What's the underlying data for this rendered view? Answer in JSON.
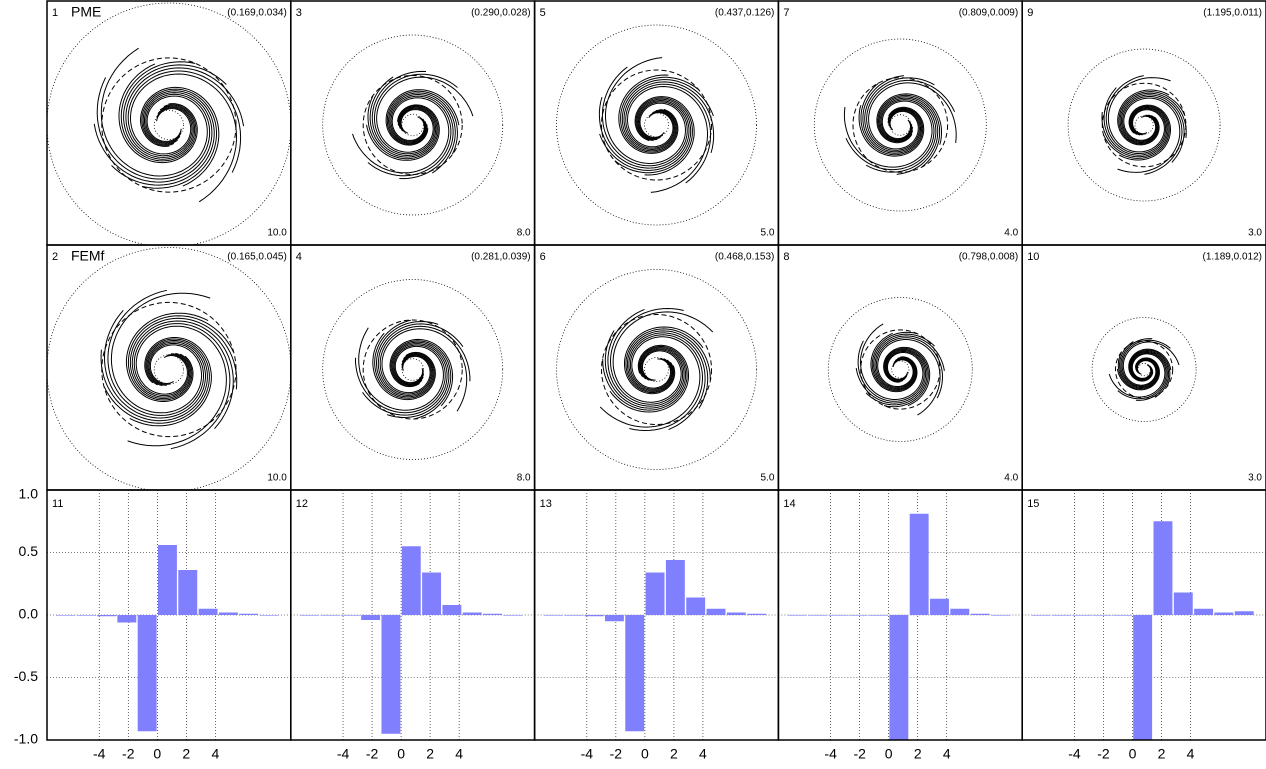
{
  "chart_data": [
    {
      "type": "contour",
      "label": "1",
      "name": "PME",
      "coords": "(0.169,0.034)",
      "scale": "10.0"
    },
    {
      "type": "contour",
      "label": "2",
      "name": "FEMf",
      "coords": "(0.165,0.045)",
      "scale": "10.0"
    },
    {
      "type": "contour",
      "label": "3",
      "coords": "(0.290,0.028)",
      "scale": "8.0"
    },
    {
      "type": "contour",
      "label": "4",
      "coords": "(0.281,0.039)",
      "scale": "8.0"
    },
    {
      "type": "contour",
      "label": "5",
      "coords": "(0.437,0.126)",
      "scale": "5.0"
    },
    {
      "type": "contour",
      "label": "6",
      "coords": "(0.468,0.153)",
      "scale": "5.0"
    },
    {
      "type": "contour",
      "label": "7",
      "coords": "(0.809,0.009)",
      "scale": "4.0"
    },
    {
      "type": "contour",
      "label": "8",
      "coords": "(0.798,0.008)",
      "scale": "4.0"
    },
    {
      "type": "contour",
      "label": "9",
      "coords": "(1.195,0.011)",
      "scale": "3.0"
    },
    {
      "type": "contour",
      "label": "10",
      "coords": "(1.189,0.012)",
      "scale": "3.0"
    },
    {
      "type": "bar",
      "label": "11",
      "color": "#8080ff",
      "bar_width": 1.4,
      "grid": true,
      "x": [
        -6.3,
        -4.9,
        -3.5,
        -2.1,
        -0.7,
        0.7,
        2.1,
        3.5,
        4.9,
        6.3,
        7.7
      ],
      "values": [
        0,
        -0.005,
        -0.01,
        -0.06,
        -0.93,
        0.56,
        0.36,
        0.05,
        0.02,
        0.01,
        0
      ],
      "xlim": [
        -7.6,
        9.2
      ],
      "ylim": [
        -1,
        1
      ],
      "xticks": [
        -4,
        -2,
        0,
        2,
        4
      ],
      "yticks": [
        {
          "value": -1,
          "label": "-1.0"
        },
        {
          "value": -0.5,
          "label": "-0.5"
        },
        {
          "value": 0,
          "label": "0.0"
        },
        {
          "value": 0.5,
          "label": "0.5"
        },
        {
          "value": 1,
          "label": "1.0"
        }
      ]
    },
    {
      "type": "bar",
      "label": "12",
      "color": "#8080ff",
      "bar_width": 1.4,
      "grid": true,
      "x": [
        -6.3,
        -4.9,
        -3.5,
        -2.1,
        -0.7,
        0.7,
        2.1,
        3.5,
        4.9,
        6.3,
        7.7
      ],
      "values": [
        0,
        0,
        -0.005,
        -0.04,
        -0.95,
        0.55,
        0.34,
        0.08,
        0.02,
        0.01,
        0
      ],
      "xlim": [
        -7.6,
        9.2
      ],
      "ylim": [
        -1,
        1
      ],
      "xticks": [
        -4,
        -2,
        0,
        2,
        4
      ]
    },
    {
      "type": "bar",
      "label": "13",
      "color": "#8080ff",
      "bar_width": 1.4,
      "grid": true,
      "x": [
        -6.3,
        -4.9,
        -3.5,
        -2.1,
        -0.7,
        0.7,
        2.1,
        3.5,
        4.9,
        6.3,
        7.7
      ],
      "values": [
        0,
        -0.005,
        -0.01,
        -0.05,
        -0.93,
        0.34,
        0.44,
        0.14,
        0.05,
        0.02,
        0.01
      ],
      "xlim": [
        -7.6,
        9.2
      ],
      "ylim": [
        -1,
        1
      ],
      "xticks": [
        -4,
        -2,
        0,
        2,
        4
      ]
    },
    {
      "type": "bar",
      "label": "14",
      "color": "#8080ff",
      "bar_width": 1.4,
      "grid": true,
      "x": [
        -6.3,
        -4.9,
        -3.5,
        -2.1,
        -0.7,
        0.7,
        2.1,
        3.5,
        4.9,
        6.3,
        7.7
      ],
      "values": [
        0,
        0,
        0,
        0,
        -0.005,
        -1.0,
        0.81,
        0.13,
        0.05,
        0.01,
        0
      ],
      "xlim": [
        -7.6,
        9.2
      ],
      "ylim": [
        -1,
        1
      ],
      "xticks": [
        -4,
        -2,
        0,
        2,
        4
      ]
    },
    {
      "type": "bar",
      "label": "15",
      "color": "#8080ff",
      "bar_width": 1.4,
      "grid": true,
      "x": [
        -6.3,
        -4.9,
        -3.5,
        -2.1,
        -0.7,
        0.7,
        2.1,
        3.5,
        4.9,
        6.3,
        7.7
      ],
      "values": [
        0,
        0,
        0,
        0,
        -0.005,
        -1.0,
        0.75,
        0.18,
        0.05,
        0.02,
        0.03
      ],
      "xlim": [
        -7.6,
        9.2
      ],
      "ylim": [
        -1,
        1
      ],
      "xticks": [
        -4,
        -2,
        0,
        2,
        4
      ]
    }
  ]
}
